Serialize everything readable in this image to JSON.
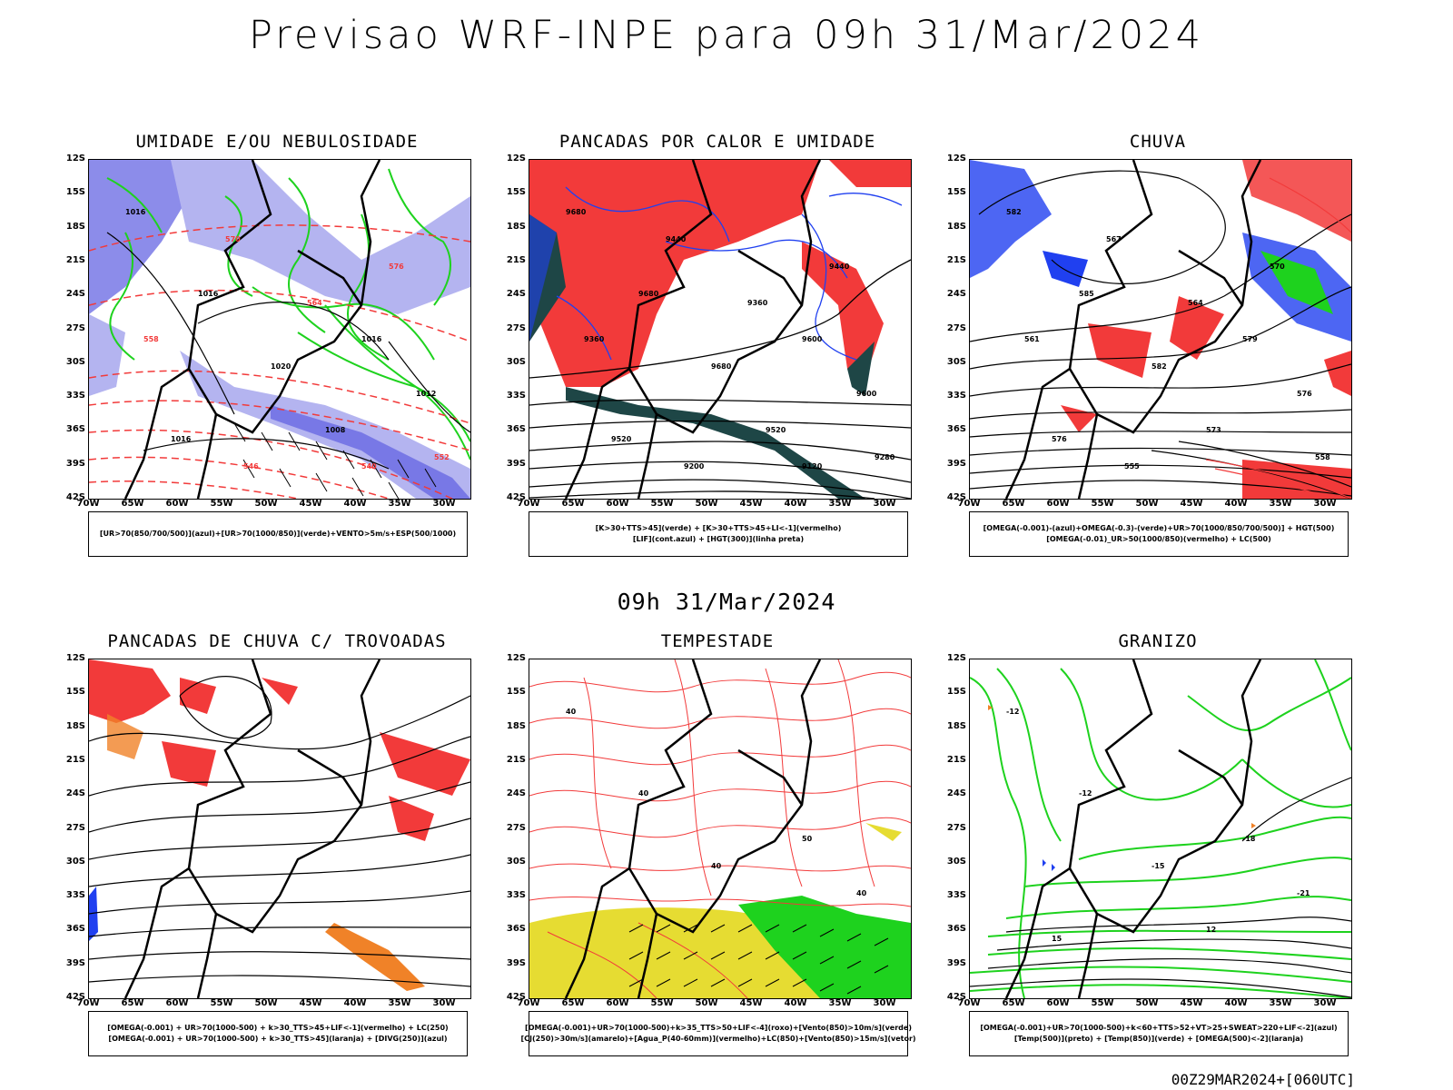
{
  "main_title": "Previsao WRF-INPE  para 09h 31/Mar/2024",
  "mid_title": "09h 31/Mar/2024",
  "footer_run": "00Z29MAR2024+[060UTC]",
  "lat_labels": [
    "12S",
    "15S",
    "18S",
    "21S",
    "24S",
    "27S",
    "30S",
    "33S",
    "36S",
    "39S",
    "42S"
  ],
  "lon_labels": [
    "70W",
    "65W",
    "60W",
    "55W",
    "50W",
    "45W",
    "40W",
    "35W",
    "30W"
  ],
  "colors": {
    "red": "#f23a3a",
    "green": "#1ed21e",
    "blue": "#2040f0",
    "lightblue": "#b4b4f0",
    "midblue": "#7878e6",
    "darkteal": "#1e4646",
    "yellow": "#e6dc32",
    "orange": "#f08228"
  },
  "panels": [
    {
      "title": "UMIDADE E/OU NEBULOSIDADE",
      "legend": [
        "[UR>70(850/700/500)](azul)+[UR>70(1000/850)](verde)+VENTO>5m/s+ESP(500/1000)"
      ],
      "contour_labels": [
        "1016",
        "1016",
        "1020",
        "1016",
        "1012",
        "1008",
        "1016",
        "576",
        "570",
        "564",
        "558",
        "552",
        "546",
        "540"
      ]
    },
    {
      "title": "PANCADAS POR CALOR E UMIDADE",
      "legend": [
        "[K>30+TTS>45](verde) + [K>30+TTS>45+LI<-1](vermelho)",
        "[LIF](cont.azul) + [HGT(300)](linha preta)"
      ],
      "contour_labels": [
        "9680",
        "9680",
        "9680",
        "9600",
        "9600",
        "9520",
        "9520",
        "9440",
        "9440",
        "9360",
        "9360",
        "9280",
        "9200",
        "9120"
      ]
    },
    {
      "title": "CHUVA",
      "legend": [
        "[OMEGA(-0.001)-(azul)+OMEGA(-0.3)-(verde)+UR>70(1000/850/700/500)] + HGT(500)",
        "[OMEGA(-0.01)_UR>50(1000/850)(vermelho) + LC(500)"
      ],
      "contour_labels": [
        "582",
        "585",
        "582",
        "579",
        "576",
        "573",
        "576",
        "570",
        "567",
        "564",
        "561",
        "558",
        "555"
      ]
    },
    {
      "title": "PANCADAS DE CHUVA C/ TROVOADAS",
      "legend": [
        "[OMEGA(-0.001) + UR>70(1000-500) + k>30_TTS>45+LIF<-1](vermelho) + LC(250)",
        "[OMEGA(-0.001) + UR>70(1000-500) + k>30_TTS>45](laranja) + [DIVG(250)](azul)"
      ],
      "contour_labels": []
    },
    {
      "title": "TEMPESTADE",
      "legend": [
        "[OMEGA(-0.001)+UR>70(1000-500)+k>35_TTS>50+LIF<-4](roxo)+[Vento(850)>10m/s](verde)",
        "[CJ(250)>30m/s](amarelo)+[Agua_P(40-60mm)](vermelho)+LC(850)+[Vento(850)>15m/s](vetor)"
      ],
      "contour_labels": [
        "40",
        "40",
        "40",
        "50",
        "40"
      ]
    },
    {
      "title": "GRANIZO",
      "legend": [
        "[OMEGA(-0.001)+UR>70(1000-500)+k<60+TTS>52+VT>25+SWEAT>220+LIF<-2](azul)",
        "[Temp(500)](preto) + [Temp(850)](verde) + [OMEGA(500)<-2](laranja)"
      ],
      "contour_labels": [
        "-12",
        "-12",
        "-15",
        "-18",
        "-21",
        "12",
        "15"
      ]
    }
  ]
}
